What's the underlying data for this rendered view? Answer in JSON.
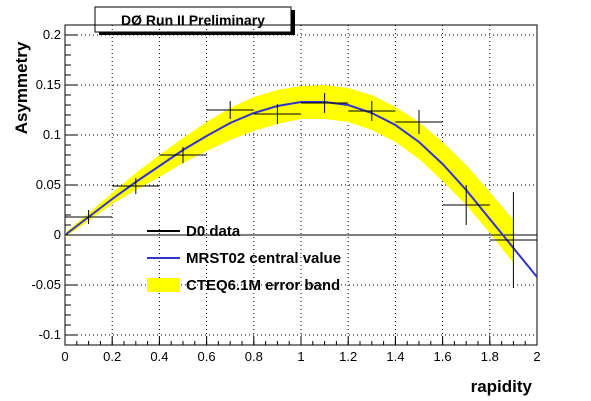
{
  "chart_data": {
    "type": "line",
    "title": "DØ Run II Preliminary",
    "xlabel": "rapidity",
    "ylabel": "Asymmetry",
    "xlim": [
      0,
      2
    ],
    "ylim": [
      -0.11,
      0.21
    ],
    "grid": true,
    "legend_position": "lower-left",
    "x_ticks": [
      "0",
      "0.2",
      "0.4",
      "0.6",
      "0.8",
      "1",
      "1.2",
      "1.4",
      "1.6",
      "1.8",
      "2"
    ],
    "y_ticks": [
      "-0.1",
      "-0.05",
      "0",
      "0.05",
      "0.1",
      "0.15",
      "0.2"
    ],
    "x_tick_values": [
      0,
      0.2,
      0.4,
      0.6,
      0.8,
      1.0,
      1.2,
      1.4,
      1.6,
      1.8,
      2.0
    ],
    "y_tick_values": [
      -0.1,
      -0.05,
      0,
      0.05,
      0.1,
      0.15,
      0.2
    ],
    "legend": [
      {
        "key": "data",
        "label": "D0 data",
        "color": "#000000"
      },
      {
        "key": "mrst",
        "label": "MRST02 central value",
        "color": "#3333cc"
      },
      {
        "key": "cteq",
        "label": "CTEQ6.1M error band",
        "color": "#ffff00"
      }
    ],
    "series": [
      {
        "name": "D0 data",
        "kind": "points_with_errors",
        "color": "#000000",
        "points": [
          {
            "x": 0.1,
            "xerr": 0.1,
            "y": 0.018,
            "yerr": 0.007
          },
          {
            "x": 0.3,
            "xerr": 0.1,
            "y": 0.049,
            "yerr": 0.008
          },
          {
            "x": 0.5,
            "xerr": 0.1,
            "y": 0.08,
            "yerr": 0.008
          },
          {
            "x": 0.7,
            "xerr": 0.1,
            "y": 0.125,
            "yerr": 0.009
          },
          {
            "x": 0.9,
            "xerr": 0.1,
            "y": 0.121,
            "yerr": 0.01
          },
          {
            "x": 1.1,
            "xerr": 0.1,
            "y": 0.132,
            "yerr": 0.01
          },
          {
            "x": 1.3,
            "xerr": 0.1,
            "y": 0.124,
            "yerr": 0.01
          },
          {
            "x": 1.5,
            "xerr": 0.1,
            "y": 0.113,
            "yerr": 0.012
          },
          {
            "x": 1.7,
            "xerr": 0.1,
            "y": 0.03,
            "yerr": 0.02
          },
          {
            "x": 1.9,
            "xerr": 0.1,
            "y": -0.005,
            "yerr": 0.048
          }
        ]
      },
      {
        "name": "MRST02 central value",
        "kind": "line",
        "color": "#3333cc",
        "x": [
          0,
          0.1,
          0.2,
          0.3,
          0.4,
          0.5,
          0.6,
          0.7,
          0.8,
          0.9,
          1.0,
          1.1,
          1.2,
          1.3,
          1.4,
          1.5,
          1.6,
          1.7,
          1.8,
          1.9,
          2.0
        ],
        "y": [
          0.0,
          0.018,
          0.036,
          0.053,
          0.069,
          0.085,
          0.099,
          0.112,
          0.122,
          0.129,
          0.133,
          0.133,
          0.13,
          0.122,
          0.11,
          0.093,
          0.071,
          0.045,
          0.016,
          -0.013,
          -0.042
        ]
      },
      {
        "name": "CTEQ6.1M error band",
        "kind": "band",
        "color": "#ffff00",
        "x": [
          0,
          0.1,
          0.2,
          0.3,
          0.4,
          0.5,
          0.6,
          0.7,
          0.8,
          0.9,
          1.0,
          1.1,
          1.2,
          1.3,
          1.4,
          1.5,
          1.6,
          1.7,
          1.8,
          1.9
        ],
        "upper": [
          0.002,
          0.022,
          0.042,
          0.062,
          0.08,
          0.097,
          0.113,
          0.127,
          0.138,
          0.145,
          0.149,
          0.15,
          0.147,
          0.14,
          0.128,
          0.113,
          0.093,
          0.07,
          0.043,
          0.015
        ],
        "lower": [
          -0.002,
          0.014,
          0.031,
          0.045,
          0.058,
          0.072,
          0.084,
          0.095,
          0.104,
          0.111,
          0.116,
          0.116,
          0.113,
          0.105,
          0.093,
          0.076,
          0.054,
          0.03,
          0.002,
          -0.028
        ]
      }
    ]
  }
}
